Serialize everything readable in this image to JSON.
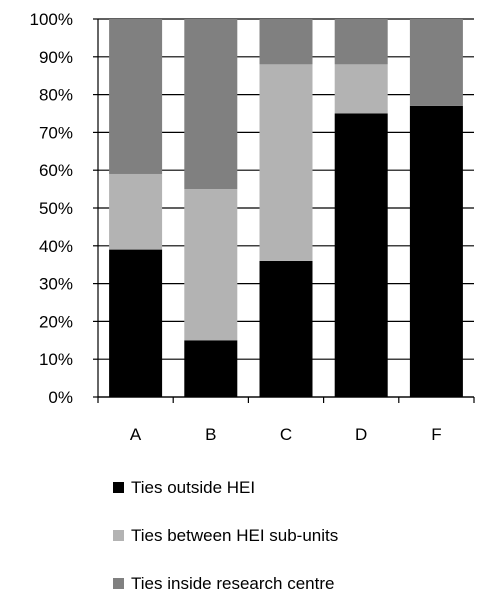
{
  "chart_data": {
    "type": "bar",
    "stacked": true,
    "percent": true,
    "categories": [
      "A",
      "B",
      "C",
      "D",
      "F"
    ],
    "series": [
      {
        "name": "Ties outside HEI",
        "color": "#000000",
        "values": [
          39,
          15,
          36,
          75,
          77
        ]
      },
      {
        "name": "Ties between HEI sub-units",
        "color": "#b3b3b3",
        "values": [
          20,
          40,
          52,
          13,
          0
        ]
      },
      {
        "name": "Ties inside research centre",
        "color": "#808080",
        "values": [
          41,
          45,
          12,
          12,
          23
        ]
      }
    ],
    "yticks": [
      "0%",
      "10%",
      "20%",
      "30%",
      "40%",
      "50%",
      "60%",
      "70%",
      "80%",
      "90%",
      "100%"
    ],
    "ylim": [
      0,
      100
    ],
    "grid": true,
    "legend": "bottom"
  }
}
